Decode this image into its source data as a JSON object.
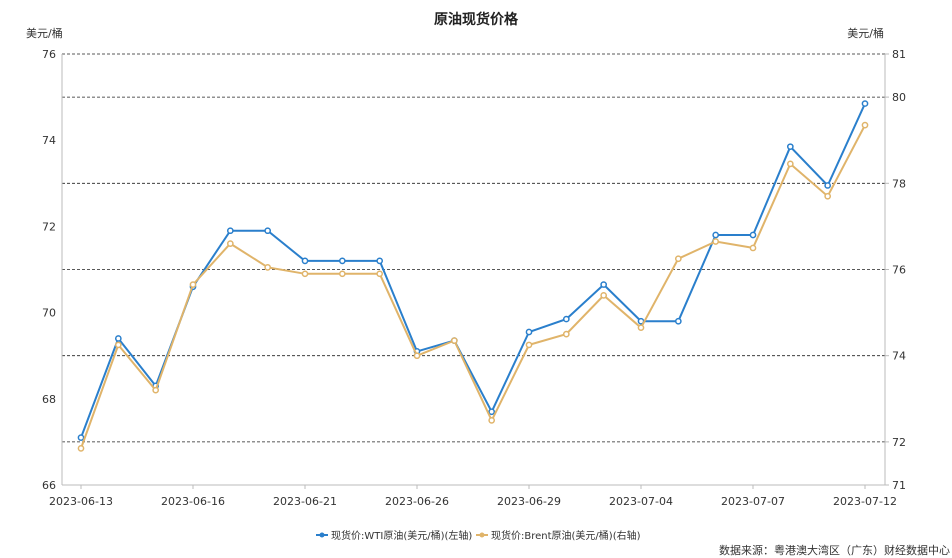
{
  "chart_data": {
    "type": "line",
    "title": "原油现货价格",
    "left_unit": "美元/桶",
    "right_unit": "美元/桶",
    "x_ticks": [
      "2023-06-13",
      "2023-06-16",
      "2023-06-21",
      "2023-06-26",
      "2023-06-29",
      "2023-07-04",
      "2023-07-07",
      "2023-07-12"
    ],
    "x": [
      "2023-06-13",
      "2023-06-14",
      "2023-06-15",
      "2023-06-16",
      "2023-06-19",
      "2023-06-20",
      "2023-06-21",
      "2023-06-22",
      "2023-06-23",
      "2023-06-26",
      "2023-06-27",
      "2023-06-28",
      "2023-06-29",
      "2023-06-30",
      "2023-07-03",
      "2023-07-04",
      "2023-07-05",
      "2023-07-06",
      "2023-07-07",
      "2023-07-10",
      "2023-07-11",
      "2023-07-12"
    ],
    "ylim_left": [
      66,
      76
    ],
    "yticks_left": [
      66,
      68,
      70,
      72,
      74,
      76
    ],
    "ylim_right": [
      71,
      81
    ],
    "yticks_right": [
      71,
      72,
      74,
      76,
      78,
      80,
      81
    ],
    "grid": "horizontal dashed at right-axis ticks",
    "legend_position": "bottom-center",
    "series": [
      {
        "name": "现货价:WTI原油(美元/桶)(左轴)",
        "axis": "left",
        "color": "#2a7fcc",
        "values": [
          67.1,
          69.4,
          68.3,
          70.6,
          71.9,
          71.9,
          71.2,
          71.2,
          71.2,
          69.1,
          69.35,
          67.7,
          69.55,
          69.85,
          70.65,
          69.8,
          69.8,
          71.8,
          71.8,
          73.85,
          72.95,
          74.85
        ]
      },
      {
        "name": "现货价:Brent原油(美元/桶)(右轴)",
        "axis": "right",
        "color": "#e0b46a",
        "values": [
          71.85,
          74.25,
          73.2,
          75.65,
          76.6,
          76.05,
          75.9,
          75.9,
          75.9,
          74.0,
          74.35,
          72.5,
          74.25,
          74.5,
          75.4,
          74.65,
          76.25,
          76.65,
          76.5,
          78.45,
          77.7,
          79.35
        ]
      }
    ]
  },
  "source": "数据来源：粤港澳大湾区（广东）财经数据中心"
}
